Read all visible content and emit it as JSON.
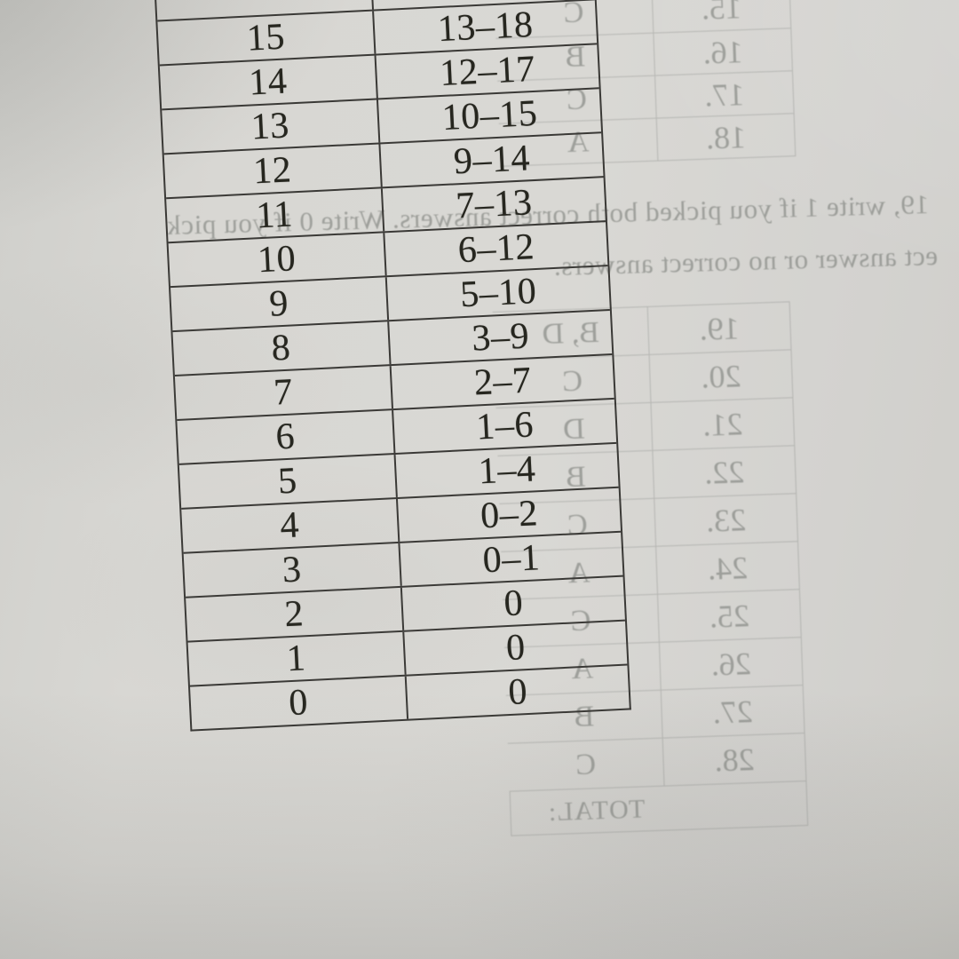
{
  "score_table": {
    "rows": [
      {
        "raw": "15",
        "range": "13–18"
      },
      {
        "raw": "14",
        "range": "12–17"
      },
      {
        "raw": "13",
        "range": "10–15"
      },
      {
        "raw": "12",
        "range": "9–14"
      },
      {
        "raw": "11",
        "range": "7–13"
      },
      {
        "raw": "10",
        "range": "6–12"
      },
      {
        "raw": "9",
        "range": "5–10"
      },
      {
        "raw": "8",
        "range": "3–9"
      },
      {
        "raw": "7",
        "range": "2–7"
      },
      {
        "raw": "6",
        "range": "1–6"
      },
      {
        "raw": "5",
        "range": "1–4"
      },
      {
        "raw": "4",
        "range": "0–2"
      },
      {
        "raw": "3",
        "range": "0–1"
      },
      {
        "raw": "2",
        "range": "0"
      },
      {
        "raw": "1",
        "range": "0"
      },
      {
        "raw": "0",
        "range": "0"
      }
    ]
  },
  "bleedthrough": {
    "instruction_line1": "19, write 1 if you picked both correct answers. Write 0 if you pick",
    "instruction_line2": "ect answer or no correct answers.",
    "answers_top": [
      {
        "num": "15.",
        "ans": "C"
      },
      {
        "num": "16.",
        "ans": "B"
      },
      {
        "num": "17.",
        "ans": "C"
      },
      {
        "num": "18.",
        "ans": "A"
      }
    ],
    "answers_bottom": [
      {
        "num": "19.",
        "ans": "B, D"
      },
      {
        "num": "20.",
        "ans": "C"
      },
      {
        "num": "21.",
        "ans": "D"
      },
      {
        "num": "22.",
        "ans": "B"
      },
      {
        "num": "23.",
        "ans": "C"
      },
      {
        "num": "24.",
        "ans": "A"
      },
      {
        "num": "25.",
        "ans": "C"
      },
      {
        "num": "26.",
        "ans": "A"
      },
      {
        "num": "27.",
        "ans": "B"
      },
      {
        "num": "28.",
        "ans": "C"
      }
    ],
    "total_label": "TOTAL:"
  },
  "colors": {
    "paper": "#d7d6d2",
    "ink": "#26261f",
    "table_line": "#3a3936",
    "bleed_ink": "rgba(122,126,121,0.62)",
    "bleed_line": "rgba(135,139,134,0.42)"
  }
}
